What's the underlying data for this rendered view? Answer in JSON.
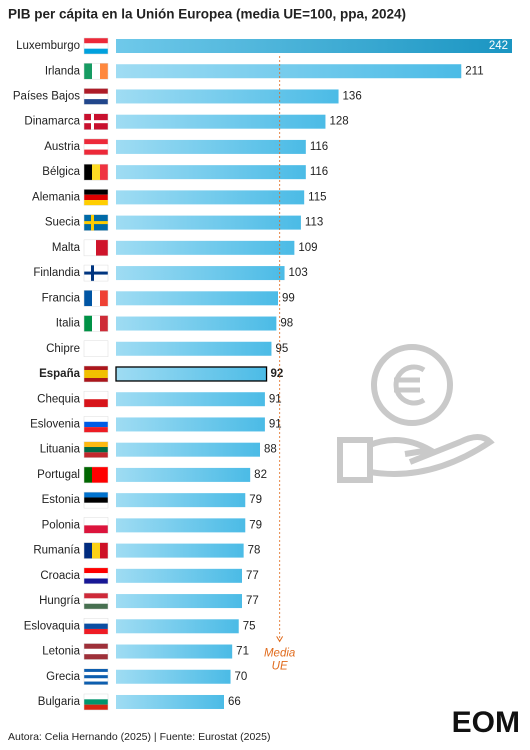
{
  "chart_data": {
    "type": "bar",
    "orientation": "horizontal",
    "title": "PIB per cápita en la Unión Europea (media UE=100, ppa, 2024)",
    "categories": [
      "Luxemburgo",
      "Irlanda",
      "Países Bajos",
      "Dinamarca",
      "Austria",
      "Bélgica",
      "Alemania",
      "Suecia",
      "Malta",
      "Finlandia",
      "Francia",
      "Italia",
      "Chipre",
      "España",
      "Chequia",
      "Eslovenia",
      "Lituania",
      "Portugal",
      "Estonia",
      "Polonia",
      "Rumanía",
      "Croacia",
      "Hungría",
      "Eslovaquia",
      "Letonia",
      "Grecia",
      "Bulgaria"
    ],
    "values": [
      242,
      211,
      136,
      128,
      116,
      116,
      115,
      113,
      109,
      103,
      99,
      98,
      95,
      92,
      91,
      91,
      88,
      82,
      79,
      79,
      78,
      77,
      77,
      75,
      71,
      70,
      66
    ],
    "color": "#5bc3ea",
    "xlim": [
      0,
      242
    ],
    "reference_line": {
      "value": 100,
      "label": "Media UE",
      "color": "#e06a1b"
    },
    "footer": "Autora: Celia Hernando (2025) | Fuente: Eurostat (2025)",
    "logo": "EOM"
  }
}
